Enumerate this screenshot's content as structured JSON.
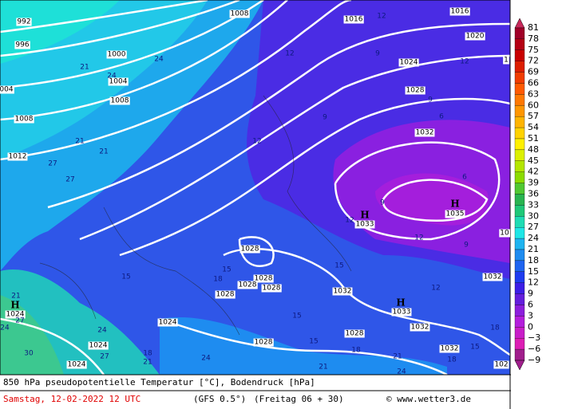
{
  "map": {
    "pressure_labels": [
      992,
      996,
      1000,
      1004,
      "004",
      1008,
      1008,
      1012,
      1008,
      1016,
      1016,
      1020,
      1024,
      1028,
      1032,
      1035,
      1033,
      1028,
      1028,
      1028,
      1028,
      1028,
      1032,
      1033,
      1032,
      1032,
      1028,
      1028,
      1024,
      1024,
      1024,
      1024,
      1032,
      102,
      10,
      1
    ],
    "temperature_labels": [
      12,
      12,
      9,
      12,
      9,
      9,
      6,
      12,
      24,
      21,
      24,
      21,
      21,
      27,
      27,
      6,
      9,
      12,
      12,
      9,
      15,
      15,
      18,
      15,
      12,
      21,
      27,
      24,
      24,
      18,
      21,
      24,
      15,
      15,
      18,
      21,
      15,
      18,
      30,
      27,
      18,
      21,
      24
    ],
    "high_markers": [
      "H",
      "H",
      "H",
      "H"
    ]
  },
  "legend": {
    "ticks": [
      81,
      78,
      75,
      72,
      69,
      66,
      63,
      60,
      57,
      54,
      51,
      48,
      45,
      42,
      39,
      36,
      33,
      30,
      27,
      24,
      21,
      18,
      15,
      12,
      9,
      6,
      3,
      0,
      {
        "value": -3,
        "label": "−3"
      },
      {
        "value": -6,
        "label": "−6"
      },
      {
        "value": -9,
        "label": "−9"
      }
    ],
    "colors": [
      "#c8285a",
      "#a00028",
      "#b40014",
      "#c80000",
      "#dc1e00",
      "#f03c00",
      "#ff5a00",
      "#ff7800",
      "#ff9600",
      "#ffb400",
      "#ffd200",
      "#fff000",
      "#dcf000",
      "#b4e600",
      "#8cdc00",
      "#50c832",
      "#28b450",
      "#1ec878",
      "#1edcb4",
      "#1ee6e6",
      "#1eb4f0",
      "#1e8cf0",
      "#1e64f0",
      "#1e3cf0",
      "#3c1ee6",
      "#641edc",
      "#8c1edc",
      "#b41edc",
      "#c81ec8",
      "#dc1eb4",
      "#a01e8c"
    ]
  },
  "footer": {
    "title": "850 hPa pseudopotentielle Temperatur [°C], Bodendruck [hPa]",
    "date": "Samstag, 12-02-2022  12 UTC",
    "model": "(GFS 0.5°)",
    "run": "(Freitag 06 + 30)",
    "credit": "© www.wetter3.de"
  }
}
